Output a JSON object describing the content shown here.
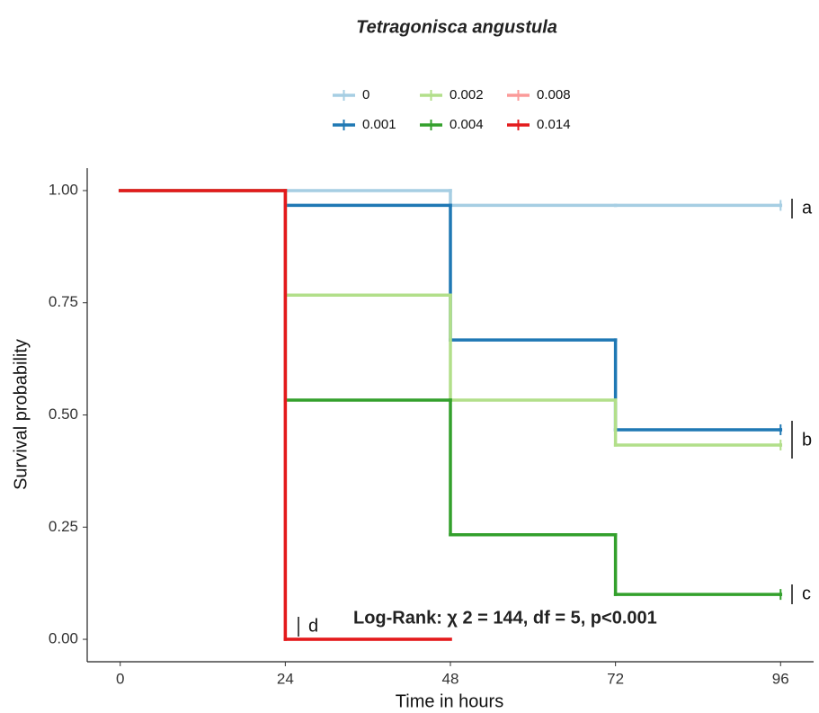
{
  "chart_data": {
    "type": "survival",
    "title": "Tetragonisca angustula",
    "x_label": "Time in hours",
    "y_label": "Survival probability",
    "x": [
      0,
      24,
      48,
      72,
      96
    ],
    "series": [
      {
        "name": "0",
        "color": "#a6cee3",
        "values": [
          1,
          1,
          0.967,
          0.967,
          0.967
        ]
      },
      {
        "name": "0.001",
        "color": "#1f78b4",
        "values": [
          1,
          0.967,
          0.667,
          0.467,
          0.467
        ]
      },
      {
        "name": "0.002",
        "color": "#b2df8a",
        "values": [
          1,
          0.767,
          0.533,
          0.433,
          0.433
        ]
      },
      {
        "name": "0.004",
        "color": "#33a02c",
        "values": [
          1,
          0.533,
          0.233,
          0.1,
          0.1
        ]
      },
      {
        "name": "0.008",
        "color": "#fb9a99",
        "values": [
          1,
          0,
          null,
          null,
          null
        ]
      },
      {
        "name": "0.014",
        "color": "#e31a1c",
        "values": [
          1,
          0,
          null,
          null,
          null
        ]
      }
    ],
    "xlim": [
      -4.8,
      100.8
    ],
    "ylim": [
      -0.05,
      1.05
    ],
    "xticks": [
      0,
      24,
      48,
      72,
      96
    ],
    "yticks": [
      {
        "value": 0,
        "label": "0.00"
      },
      {
        "value": 0.25,
        "label": "0.25"
      },
      {
        "value": 0.5,
        "label": "0.50"
      },
      {
        "value": 0.75,
        "label": "0.75"
      },
      {
        "value": 1,
        "label": "1.00"
      }
    ],
    "legend_position": "top",
    "group_letters": [
      "a",
      "b",
      "c",
      "d"
    ],
    "stat_label": "Log-Rank: χ 2 = 144, df = 5, p<0.001"
  }
}
